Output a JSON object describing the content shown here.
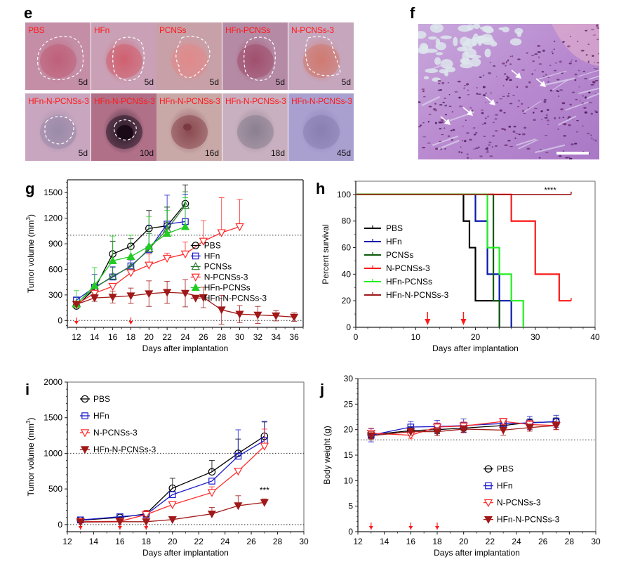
{
  "panels": {
    "e": {
      "letter": "e",
      "tiles": [
        {
          "label": "PBS",
          "day": "5d",
          "tone": "#c48ea6",
          "core": "#c0607a",
          "outline": "blob"
        },
        {
          "label": "HFn",
          "day": "5d",
          "tone": "#c9a0b5",
          "core": "#d06070",
          "outline": "oval"
        },
        {
          "label": "PCNSs",
          "day": "5d",
          "tone": "#c8a0a8",
          "core": "#e08a8a",
          "outline": "kidney"
        },
        {
          "label": "HFn-PCNSs",
          "day": "5d",
          "tone": "#b58aa5",
          "core": "#a0506e",
          "outline": "oval"
        },
        {
          "label": "N-PCNSs-3",
          "day": "5d",
          "tone": "#c6a6bd",
          "core": "#d07a70",
          "outline": "bean"
        },
        {
          "label": "HFn-N-PCNSs-3",
          "day": "5d",
          "tone": "#c9a6bf",
          "core": "#9a8aaa",
          "outline": "small"
        },
        {
          "label": "HFn-N-PCNSs-3",
          "day": "10d",
          "tone": "#b07088",
          "core": "#2a1a2a",
          "outline": "tiny"
        },
        {
          "label": "HFn-N-PCNSs-3",
          "day": "16d",
          "tone": "#c9a8a8",
          "core": "#8a4a50",
          "outline": "none"
        },
        {
          "label": "HFn-N-PCNSs-3",
          "day": "18d",
          "tone": "#c9b0c0",
          "core": "#8a8090",
          "outline": "none"
        },
        {
          "label": "HFn-N-PCNSs-3",
          "day": "45d",
          "tone": "#a9a0d0",
          "core": "#8a80b0",
          "outline": "none"
        }
      ]
    },
    "f": {
      "letter": "f",
      "description": "H&E stained tissue section with white arrows",
      "arrow_count": 5,
      "has_scale_bar": true
    }
  },
  "chart_data": [
    {
      "id": "g",
      "letter": "g",
      "type": "line",
      "title": "",
      "xlabel": "Days after implantation",
      "ylabel": "Tumor volume (mm",
      "ylabel_sup": "3",
      "ylabel_close": ")",
      "xlim": [
        11,
        37
      ],
      "ylim": [
        -80,
        1650
      ],
      "xticks": [
        12,
        14,
        16,
        18,
        20,
        22,
        24,
        26,
        28,
        30,
        32,
        34,
        36
      ],
      "yticks": [
        0,
        300,
        600,
        900,
        1200,
        1500
      ],
      "hlines": [
        0,
        1000
      ],
      "treatment_arrows": [
        12,
        18
      ],
      "legend_position": "center-right",
      "series": [
        {
          "name": "PBS",
          "color": "#000000",
          "marker": "circle-open",
          "x": [
            12,
            14,
            16,
            18,
            20,
            22,
            24
          ],
          "y": [
            170,
            370,
            780,
            870,
            1080,
            1110,
            1370
          ],
          "err": [
            0,
            0,
            150,
            90,
            210,
            220,
            220
          ]
        },
        {
          "name": "HFn",
          "color": "#1a1acc",
          "marker": "square-open",
          "x": [
            12,
            14,
            16,
            18,
            20,
            22,
            24
          ],
          "y": [
            240,
            390,
            510,
            640,
            830,
            1130,
            1160
          ],
          "err": [
            30,
            150,
            120,
            70,
            280,
            340,
            320
          ]
        },
        {
          "name": "PCNSs",
          "color": "#2e7d32",
          "marker": "triangle-up-open",
          "x": [
            12,
            14,
            16,
            18,
            20,
            22,
            24
          ],
          "y": [
            200,
            380,
            520,
            630,
            840,
            1070,
            1350
          ],
          "err": [
            0,
            0,
            100,
            0,
            180,
            260,
            160
          ]
        },
        {
          "name": "N-PCNSs-3",
          "color": "#ff2a2a",
          "marker": "triangle-down-open",
          "x": [
            12,
            14,
            16,
            18,
            20,
            22,
            24,
            26,
            28,
            30
          ],
          "y": [
            190,
            320,
            400,
            560,
            650,
            730,
            780,
            930,
            1030,
            1100
          ],
          "err": [
            0,
            0,
            0,
            0,
            130,
            60,
            140,
            240,
            410,
            320
          ]
        },
        {
          "name": "HFn-PCNSs",
          "color": "#22cc22",
          "marker": "triangle-up-filled",
          "x": [
            12,
            14,
            16,
            18,
            20,
            22,
            24
          ],
          "y": [
            190,
            410,
            700,
            750,
            870,
            1020,
            1100
          ],
          "err": [
            160,
            210,
            290,
            250,
            350,
            270,
            340
          ]
        },
        {
          "name": "HFn-N-PCNSs-3",
          "color": "#a01818",
          "marker": "triangle-down-filled",
          "x": [
            12,
            14,
            16,
            18,
            20,
            22,
            24,
            26,
            28,
            30,
            32,
            34,
            36
          ],
          "y": [
            190,
            265,
            275,
            290,
            315,
            330,
            320,
            270,
            125,
            75,
            65,
            55,
            40
          ],
          "err": [
            0,
            40,
            70,
            90,
            150,
            130,
            160,
            120,
            170,
            100,
            100,
            60,
            50
          ]
        }
      ]
    },
    {
      "id": "h",
      "letter": "h",
      "type": "line",
      "subtype": "kaplan-meier",
      "title": "",
      "xlabel": "Days after implantation",
      "ylabel": "Percent survival",
      "xlim": [
        0,
        40
      ],
      "ylim": [
        0,
        110
      ],
      "xticks": [
        0,
        10,
        20,
        30,
        40
      ],
      "yticks": [
        0,
        20,
        40,
        60,
        80,
        100
      ],
      "treatment_arrows": [
        12,
        18
      ],
      "annotation": "****",
      "legend_position": "center-left",
      "series": [
        {
          "name": "PBS",
          "color": "#000000",
          "steps": [
            [
              0,
              100
            ],
            [
              18,
              80
            ],
            [
              19,
              60
            ],
            [
              20,
              20
            ],
            [
              24,
              0
            ]
          ],
          "end": 24
        },
        {
          "name": "HFn",
          "color": "#0a1aaa",
          "steps": [
            [
              0,
              100
            ],
            [
              20,
              80
            ],
            [
              22,
              40
            ],
            [
              24,
              20
            ],
            [
              26,
              0
            ]
          ],
          "end": 26
        },
        {
          "name": "PCNSs",
          "color": "#0a5a0a",
          "steps": [
            [
              0,
              100
            ],
            [
              23,
              20
            ],
            [
              24,
              0
            ]
          ],
          "end": 24
        },
        {
          "name": "N-PCNSs-3",
          "color": "#ff1a1a",
          "steps": [
            [
              0,
              100
            ],
            [
              26,
              80
            ],
            [
              30,
              40
            ],
            [
              34,
              20
            ]
          ],
          "end": 36
        },
        {
          "name": "HFn-PCNSs",
          "color": "#22ee22",
          "steps": [
            [
              0,
              100
            ],
            [
              22,
              60
            ],
            [
              24,
              40
            ],
            [
              26,
              20
            ],
            [
              28,
              0
            ]
          ],
          "end": 28
        },
        {
          "name": "HFn-N-PCNSs-3",
          "color": "#a01818",
          "steps": [
            [
              0,
              100
            ]
          ],
          "end": 36
        }
      ]
    },
    {
      "id": "i",
      "letter": "i",
      "type": "line",
      "title": "",
      "xlabel": "Days after implantation",
      "ylabel": "Tumor volume (mm",
      "ylabel_sup": "3",
      "ylabel_close": ")",
      "xlim": [
        12,
        30
      ],
      "ylim": [
        -100,
        2000
      ],
      "xticks": [
        12,
        14,
        16,
        18,
        20,
        22,
        24,
        26,
        28,
        30
      ],
      "yticks": [
        0,
        500,
        1000,
        1500,
        2000
      ],
      "hlines": [
        0,
        1000
      ],
      "treatment_arrows": [
        13,
        16,
        18
      ],
      "annotation": "***",
      "annotation_at": [
        27,
        440
      ],
      "legend_position": "top-left",
      "series": [
        {
          "name": "PBS",
          "color": "#000000",
          "marker": "circle-open",
          "x": [
            13,
            16,
            18,
            20,
            23,
            25,
            27
          ],
          "y": [
            60,
            100,
            150,
            510,
            740,
            1000,
            1240
          ],
          "err": [
            0,
            0,
            0,
            140,
            160,
            200,
            200
          ]
        },
        {
          "name": "HFn",
          "color": "#1a1acc",
          "marker": "square-open",
          "x": [
            13,
            16,
            18,
            20,
            23,
            25,
            27
          ],
          "y": [
            65,
            110,
            140,
            420,
            610,
            960,
            1180
          ],
          "err": [
            0,
            0,
            0,
            0,
            0,
            370,
            270
          ]
        },
        {
          "name": "N-PCNSs-3",
          "color": "#ff2a2a",
          "marker": "triangle-down-open",
          "x": [
            13,
            16,
            18,
            20,
            23,
            25,
            27
          ],
          "y": [
            40,
            45,
            140,
            280,
            450,
            750,
            1100
          ],
          "err": [
            0,
            0,
            60,
            0,
            80,
            0,
            240
          ]
        },
        {
          "name": "HFn-N-PCNSs-3",
          "color": "#a01818",
          "marker": "triangle-down-filled",
          "x": [
            13,
            16,
            18,
            20,
            23,
            25,
            27
          ],
          "y": [
            35,
            40,
            40,
            70,
            150,
            265,
            310
          ],
          "err": [
            0,
            0,
            70,
            0,
            90,
            140,
            50
          ]
        }
      ]
    },
    {
      "id": "j",
      "letter": "j",
      "type": "line",
      "title": "",
      "xlabel": "Days after implantation",
      "ylabel": "Body weight (g)",
      "xlim": [
        12,
        30
      ],
      "ylim": [
        0,
        30
      ],
      "xticks": [
        12,
        14,
        16,
        18,
        20,
        22,
        24,
        26,
        28,
        30
      ],
      "yticks": [
        0,
        5,
        10,
        15,
        20,
        25,
        30
      ],
      "hlines": [
        18
      ],
      "treatment_arrows": [
        13,
        16,
        18
      ],
      "legend_position": "lower-center-right",
      "series": [
        {
          "name": "PBS",
          "color": "#000000",
          "marker": "circle-open",
          "x": [
            13,
            16,
            18,
            20,
            23,
            25,
            27
          ],
          "y": [
            19.0,
            19.8,
            20.0,
            20.3,
            20.8,
            21.4,
            21.5
          ],
          "err": [
            0.8,
            0.8,
            0.8,
            0.8,
            0.8,
            0.7,
            0.8
          ]
        },
        {
          "name": "HFn",
          "color": "#1a1acc",
          "marker": "square-open",
          "x": [
            13,
            16,
            18,
            20,
            23,
            25,
            27
          ],
          "y": [
            18.9,
            20.5,
            20.6,
            20.8,
            21.2,
            21.3,
            21.6
          ],
          "err": [
            1.3,
            1.1,
            1.2,
            1.3,
            1.0,
            1.3,
            1.2
          ]
        },
        {
          "name": "N-PCNSs-3",
          "color": "#ff2a2a",
          "marker": "triangle-down-open",
          "x": [
            13,
            16,
            18,
            20,
            23,
            25,
            27
          ],
          "y": [
            19.3,
            18.9,
            20.5,
            20.7,
            21.6,
            21.0,
            20.8
          ],
          "err": [
            1.0,
            0.6,
            0.8,
            0.8,
            0.6,
            0.8,
            0.8
          ]
        },
        {
          "name": "HFn-N-PCNSs-3",
          "color": "#a01818",
          "marker": "triangle-down-filled",
          "x": [
            13,
            16,
            18,
            20,
            23,
            25,
            27
          ],
          "y": [
            18.8,
            19.6,
            19.6,
            20.1,
            19.9,
            20.4,
            20.8
          ],
          "err": [
            0.8,
            0.7,
            0.8,
            0.7,
            1.0,
            0.7,
            0.8
          ]
        }
      ]
    }
  ]
}
